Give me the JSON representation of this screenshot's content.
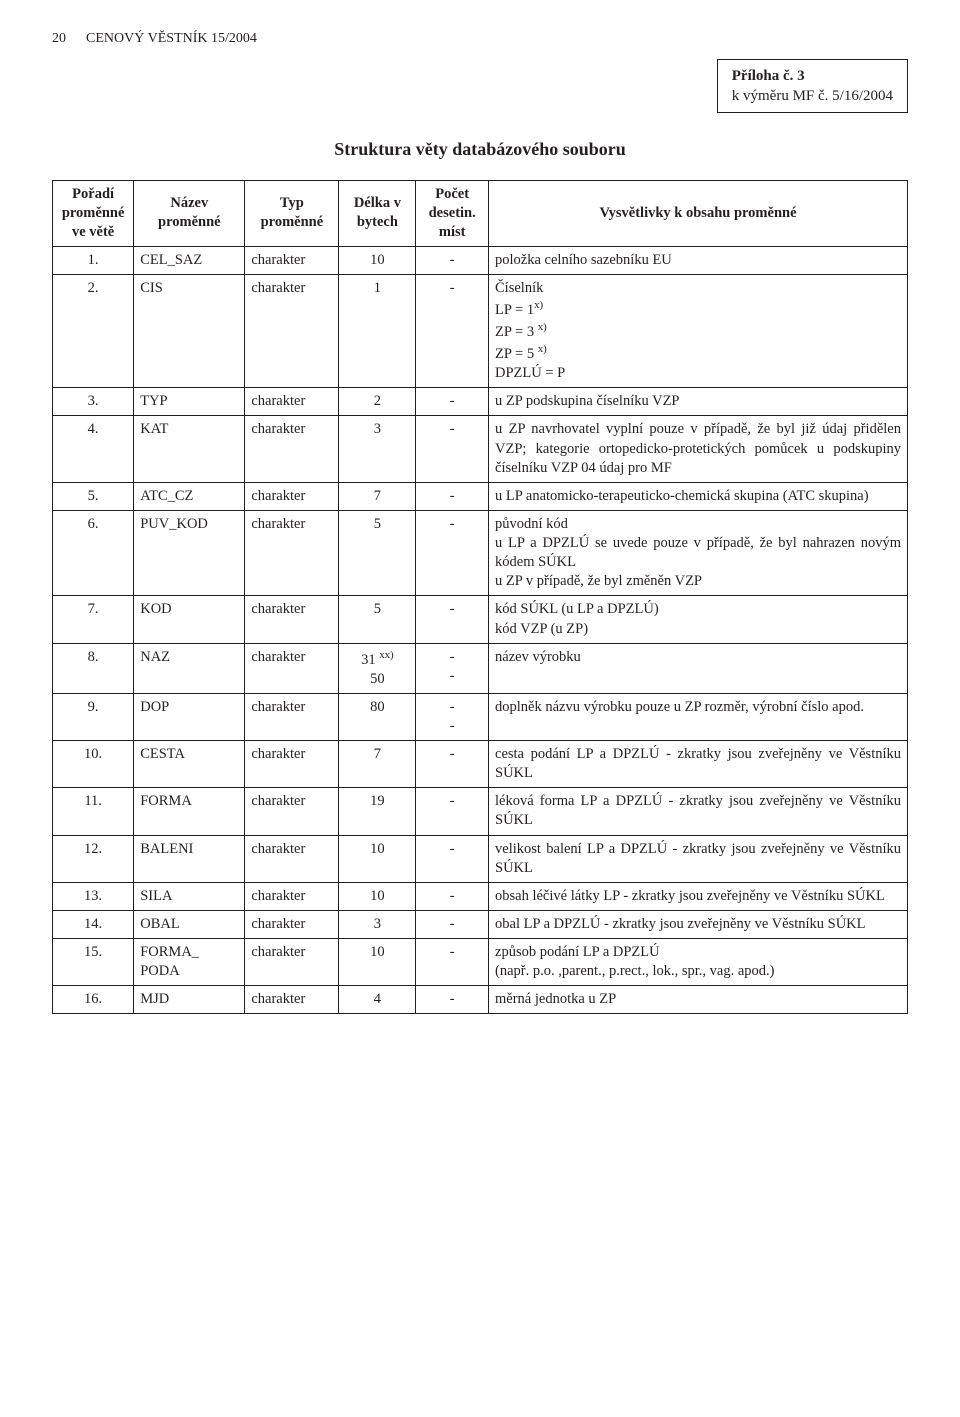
{
  "header": {
    "page_number": "20",
    "journal": "CENOVÝ VĚSTNÍK 15/2004"
  },
  "appendix": {
    "title": "Příloha č. 3",
    "subtitle": "k výměru MF č. 5/16/2004"
  },
  "section_title": "Struktura věty databázového souboru",
  "th": {
    "ord": "Pořadí proměnné ve větě",
    "name": "Název proměnné",
    "type": "Typ proměnné",
    "len": "Délka v bytech",
    "dec": "Počet desetin. míst",
    "desc": "Vysvětlivky k obsahu proměnné"
  },
  "rows": [
    {
      "ord": "1.",
      "name": "CEL_SAZ",
      "type": "charakter",
      "len": "10",
      "dec": "-",
      "desc": "položka celního sazebníku EU"
    },
    {
      "ord": "2.",
      "name": "CIS",
      "type": "charakter",
      "len": "1",
      "dec": "-",
      "desc_html": "Číselník<br>LP = 1<span class=\"sup\">x)</span><br>ZP = 3 <span class=\"sup\">x)</span><br>ZP = 5 <span class=\"sup\">x)</span><br>DPZLÚ = P"
    },
    {
      "ord": "3.",
      "name": "TYP",
      "type": "charakter",
      "len": "2",
      "dec": "-",
      "desc": "u ZP podskupina číselníku VZP"
    },
    {
      "ord": "4.",
      "name": "KAT",
      "type": "charakter",
      "len": "3",
      "dec": "-",
      "desc": "u ZP navrhovatel vyplní pouze v případě, že byl již údaj přidělen VZP; kategorie ortopedicko-protetických pomůcek u podskupiny číselníku VZP 04 údaj pro MF"
    },
    {
      "ord": "5.",
      "name": "ATC_CZ",
      "type": "charakter",
      "len": "7",
      "dec": "-",
      "desc": "u LP anatomicko-terapeuticko-chemická skupina (ATC skupina)"
    },
    {
      "ord": "6.",
      "name": "PUV_KOD",
      "type": "charakter",
      "len": "5",
      "dec": "-",
      "desc": "původní kód\nu LP a DPZLÚ se uvede pouze v případě, že byl nahrazen novým kódem SÚKL\nu ZP v případě, že byl změněn VZP"
    },
    {
      "ord": "7.",
      "name": "KOD",
      "type": "charakter",
      "len": "5",
      "dec": "-",
      "desc": "kód SÚKL (u LP a DPZLÚ)\nkód VZP (u ZP)"
    },
    {
      "ord": "8.",
      "name": "NAZ",
      "type": "charakter",
      "len_html": "31 <span class=\"sup\">xx)</span><br>50",
      "dec_html": "-<br>-",
      "desc": "název výrobku"
    },
    {
      "ord": "9.",
      "name": "DOP",
      "type": "charakter",
      "len": "80",
      "dec_html": "-<br>-",
      "desc": "doplněk názvu výrobku pouze u ZP rozměr, výrobní číslo apod."
    },
    {
      "ord": "10.",
      "name": "CESTA",
      "type": "charakter",
      "len": "7",
      "dec": "-",
      "desc": "cesta podání LP a DPZLÚ - zkratky jsou zveřejněny ve Věstníku SÚKL"
    },
    {
      "ord": "11.",
      "name": "FORMA",
      "type": "charakter",
      "len": "19",
      "dec": "-",
      "desc": "léková forma LP a DPZLÚ - zkratky jsou zveřejněny ve Věstníku SÚKL"
    },
    {
      "ord": "12.",
      "name": "BALENI",
      "type": "charakter",
      "len": "10",
      "dec": "-",
      "desc": "velikost balení LP a DPZLÚ - zkratky jsou zveřejněny ve Věstníku SÚKL"
    },
    {
      "ord": "13.",
      "name": "SILA",
      "type": "charakter",
      "len": "10",
      "dec": "-",
      "desc": "obsah léčivé látky LP - zkratky jsou zveřejněny ve Věstníku SÚKL"
    },
    {
      "ord": "14.",
      "name": "OBAL",
      "type": "charakter",
      "len": "3",
      "dec": "-",
      "desc": "obal LP a DPZLÚ - zkratky jsou zveřejněny ve Věstníku SÚKL"
    },
    {
      "ord": "15.",
      "name": "FORMA_\nPODA",
      "type": "charakter",
      "len": "10",
      "dec": "-",
      "desc": "způsob podání LP a DPZLÚ\n(např. p.o. ,parent., p.rect., lok., spr., vag. apod.)"
    },
    {
      "ord": "16.",
      "name": "MJD",
      "type": "charakter",
      "len": "4",
      "dec": "-",
      "desc": "měrná jednotka u ZP"
    }
  ]
}
